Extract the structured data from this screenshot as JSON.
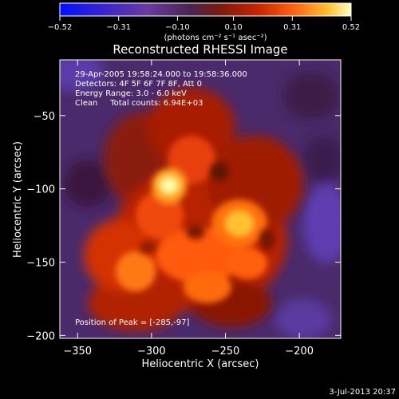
{
  "colorbar": {
    "tick_labels": [
      "-0.52",
      "-0.31",
      "-0.10",
      "0.10",
      "0.31",
      "0.52"
    ],
    "tick_values": [
      -0.52,
      -0.31,
      -0.1,
      0.1,
      0.31,
      0.52
    ],
    "range": [
      -0.52,
      0.52
    ],
    "units_html": "(photons cm⁻² s⁻¹ asec⁻²)"
  },
  "footer_date": "3-Jul-2013 20:37",
  "chart_data": {
    "type": "heatmap",
    "title": "Reconstructed RHESSI Image",
    "xlabel": "Heliocentric X (arcsec)",
    "ylabel": "Heliocentric Y (arcsec)",
    "xlim": [
      -362,
      -172
    ],
    "ylim": [
      -202,
      -12
    ],
    "x_ticks": [
      -350,
      -300,
      -250,
      -200
    ],
    "y_ticks": [
      -50,
      -100,
      -150,
      -200
    ],
    "annotations": [
      "29-Apr-2005 19:58:24.000 to 19:58:36.000",
      "Detectors: 4F 5F 6F 7F 8F, Att 0",
      "Energy Range: 3.0 - 6.0 keV",
      "Clean     Total counts: 6.94E+03"
    ],
    "peak_label": "Position of Peak = [-285,-97]",
    "peak_position": [
      -285,
      -97
    ],
    "peak_value": 0.52,
    "colormap": [
      "#0000ff",
      "#5a36a8",
      "#4a2460",
      "#8a1a10",
      "#d42a00",
      "#ff6a10",
      "#ffd040",
      "#ffffa0"
    ]
  }
}
